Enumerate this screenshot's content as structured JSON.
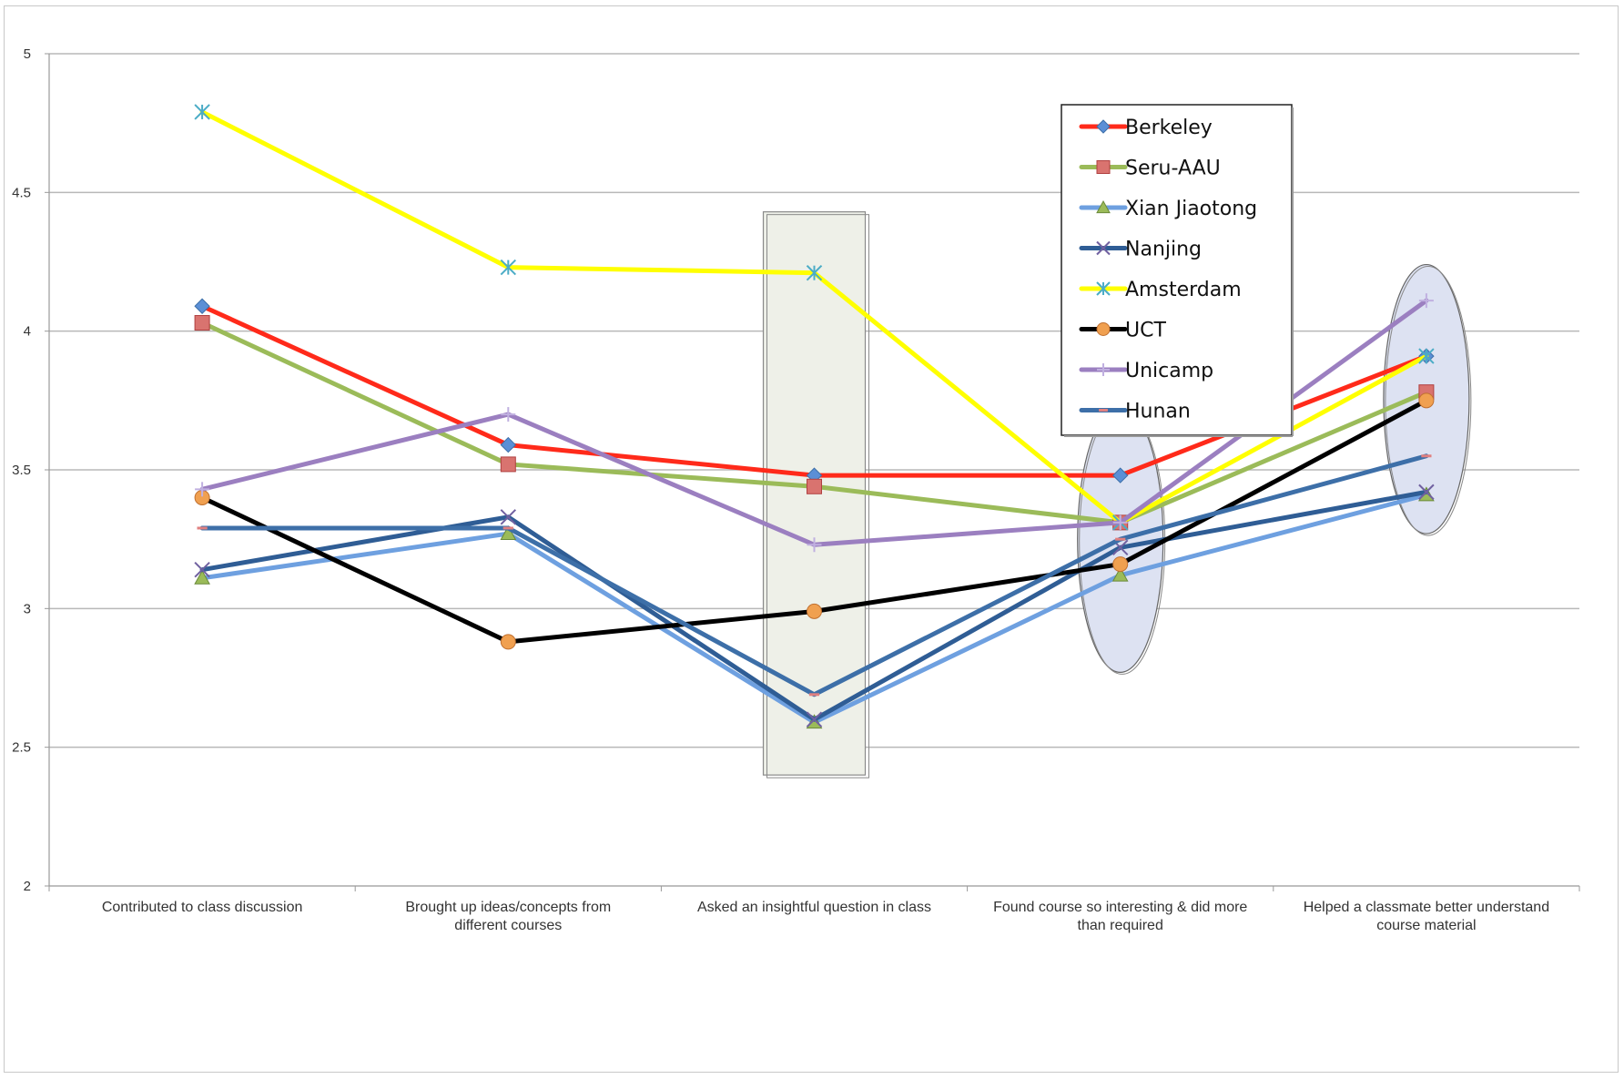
{
  "chart_data": {
    "type": "line",
    "title": "",
    "xlabel": "",
    "ylabel": "",
    "categories": [
      [
        "Contributed to class discussion"
      ],
      [
        "Brought up ideas/concepts from",
        "different courses"
      ],
      [
        "Asked an insightful question in class"
      ],
      [
        "Found course so interesting & did more",
        "than required"
      ],
      [
        "Helped a classmate better understand",
        "course material"
      ]
    ],
    "ylim": [
      2,
      5
    ],
    "yticks": [
      "2",
      "2.5",
      "3",
      "3.5",
      "4",
      "4.5",
      "5"
    ],
    "grid": true,
    "legend_position": "top-right",
    "series": [
      {
        "name": "Berkeley",
        "color": "#ff2a1a",
        "marker": "diamond",
        "marker_color": "#5b8fd6",
        "values": [
          4.09,
          3.59,
          3.48,
          3.48,
          3.91
        ]
      },
      {
        "name": "Seru-AAU",
        "color": "#9bbb59",
        "marker": "square",
        "marker_color": "#d9736f",
        "values": [
          4.03,
          3.52,
          3.44,
          3.31,
          3.78
        ]
      },
      {
        "name": "Xian Jiaotong",
        "color": "#6ea0e0",
        "marker": "triangle",
        "marker_color": "#9bbb59",
        "values": [
          3.11,
          3.27,
          2.59,
          3.12,
          3.41
        ]
      },
      {
        "name": "Nanjing",
        "color": "#2f5d95",
        "marker": "x",
        "marker_color": "#7060a0",
        "values": [
          3.14,
          3.33,
          2.6,
          3.22,
          3.42
        ]
      },
      {
        "name": "Amsterdam",
        "color": "#ffff00",
        "marker": "star",
        "marker_color": "#4bacc6",
        "values": [
          4.79,
          4.23,
          4.21,
          3.31,
          3.91
        ]
      },
      {
        "name": "UCT",
        "color": "#000000",
        "marker": "circle",
        "marker_color": "#f0a050",
        "values": [
          3.4,
          2.88,
          2.99,
          3.16,
          3.75
        ]
      },
      {
        "name": "Unicamp",
        "color": "#9b7fc0",
        "marker": "plus",
        "marker_color": "#c0b0e0",
        "values": [
          3.43,
          3.7,
          3.23,
          3.31,
          4.11
        ]
      },
      {
        "name": "Hunan",
        "color": "#3d6fa8",
        "marker": "dash",
        "marker_color": "#e08080",
        "values": [
          3.29,
          3.29,
          2.69,
          3.25,
          3.55
        ]
      }
    ],
    "annotations": [
      {
        "shape": "rectangle",
        "fill": "#eef0e8",
        "category_index": 2,
        "y_range": [
          2.4,
          4.43
        ]
      },
      {
        "shape": "ellipse",
        "fill": "#dde2f2",
        "category_index": 3,
        "y_range": [
          2.77,
          3.73
        ]
      },
      {
        "shape": "ellipse",
        "fill": "#dde2f2",
        "category_index": 4,
        "y_range": [
          3.27,
          4.24
        ]
      }
    ]
  }
}
